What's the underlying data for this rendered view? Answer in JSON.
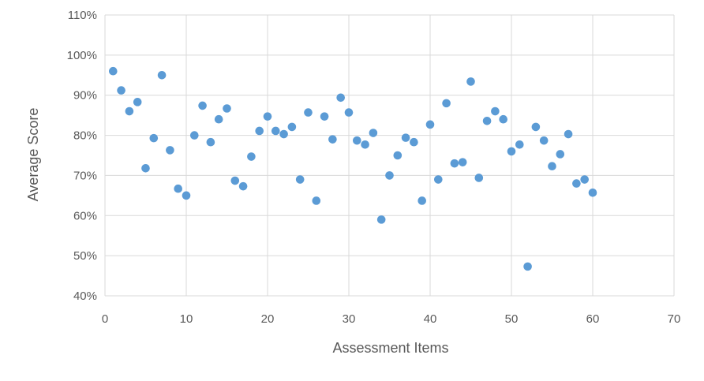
{
  "chart_data": {
    "type": "scatter",
    "title": "",
    "xlabel": "Assessment Items",
    "ylabel": "Average Score",
    "xlim": [
      0,
      70
    ],
    "ylim": [
      40,
      110
    ],
    "x_ticks": [
      0,
      10,
      20,
      30,
      40,
      50,
      60,
      70
    ],
    "y_ticks": [
      40,
      50,
      60,
      70,
      80,
      90,
      100,
      110
    ],
    "x_tick_labels": [
      "0",
      "10",
      "20",
      "30",
      "40",
      "50",
      "60",
      "70"
    ],
    "y_tick_labels": [
      "40%",
      "50%",
      "60%",
      "70%",
      "80%",
      "90%",
      "100%",
      "110%"
    ],
    "grid": true,
    "legend": "none",
    "colors": {
      "marker": "#5B9BD5",
      "grid": "#D9D9D9",
      "text": "#595959"
    },
    "series": [
      {
        "x": [
          1,
          2,
          3,
          4,
          5,
          6,
          7,
          8,
          9,
          10,
          11,
          12,
          13,
          14,
          15,
          16,
          17,
          18,
          19,
          20,
          21,
          22,
          23,
          24,
          25,
          26,
          27,
          28,
          29,
          30,
          31,
          32,
          33,
          34,
          35,
          36,
          37,
          38,
          39,
          40,
          41,
          42,
          43,
          44,
          45,
          46,
          47,
          48,
          49,
          50,
          51,
          52,
          53,
          54,
          55,
          56,
          57,
          58,
          59,
          60
        ],
        "y": [
          96,
          91.2,
          86,
          88.3,
          71.8,
          79.3,
          95,
          76.3,
          66.7,
          65,
          80,
          87.4,
          78.3,
          84,
          86.7,
          68.7,
          67.3,
          74.7,
          81.1,
          84.7,
          81.1,
          80.3,
          82.1,
          69,
          85.7,
          63.7,
          84.7,
          79,
          89.4,
          85.7,
          78.7,
          77.7,
          80.6,
          59,
          70,
          75,
          79.4,
          78.3,
          63.7,
          82.7,
          69,
          88,
          73,
          73.3,
          93.4,
          69.4,
          83.6,
          86,
          84,
          76,
          77.7,
          47.3,
          82.1,
          78.7,
          72.3,
          75.3,
          80.3,
          68,
          69,
          65.7
        ]
      }
    ]
  }
}
